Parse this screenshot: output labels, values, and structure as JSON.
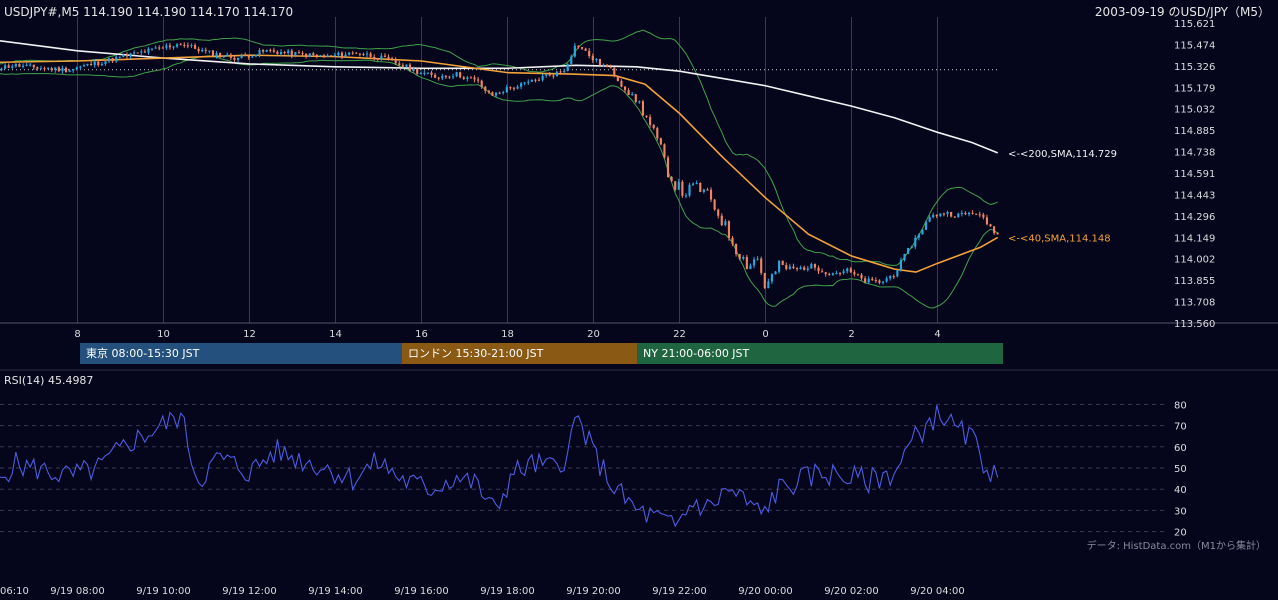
{
  "header": {
    "symbol_line": "USDJPY#,M5 114.190 114.190 114.170 114.170",
    "title_right": "2003-09-19 のUSD/JPY（M5）"
  },
  "colors": {
    "background": "#05051c",
    "candle_up": "#27a9e0",
    "candle_down": "#f4845f",
    "sma200": "#f2f2f2",
    "sma40": "#f3a23a",
    "bollinger": "#3fa24a",
    "rsi": "#4d5de0",
    "grid": "#3a3a55"
  },
  "sessions": [
    {
      "label": "東京 08:00-15:30 JST",
      "color": "#24507e"
    },
    {
      "label": "ロンドン 15:30-21:00 JST",
      "color": "#8a5a14"
    },
    {
      "label": "NY 21:00-06:00 JST",
      "color": "#1f6640"
    }
  ],
  "rsi_panel": {
    "title": "RSI(14) 45.4987",
    "source_note": "データ: HistData.com（M1から集計）"
  },
  "chart_data": [
    {
      "type": "candlestick",
      "title": "USDJPY#,M5",
      "x_ticks_hours": [
        "6",
        "8",
        "10",
        "12",
        "14",
        "16",
        "18",
        "20",
        "22",
        "0",
        "2",
        "4"
      ],
      "y_ticks": [
        "115.621",
        "115.474",
        "115.326",
        "115.179",
        "115.032",
        "114.885",
        "114.738",
        "114.591",
        "114.443",
        "114.296",
        "114.149",
        "114.002",
        "113.855",
        "113.708",
        "113.560"
      ],
      "ylim": [
        113.56,
        115.621
      ],
      "time_range_hours": [
        5.9,
        29.4
      ],
      "reference_line_price": 115.3,
      "close_path": [
        [
          5.9,
          115.3
        ],
        [
          6.5,
          115.33
        ],
        [
          7.2,
          115.31
        ],
        [
          7.8,
          115.3
        ],
        [
          8.5,
          115.35
        ],
        [
          9.2,
          115.4
        ],
        [
          9.8,
          115.44
        ],
        [
          10.4,
          115.48
        ],
        [
          11.0,
          115.42
        ],
        [
          11.7,
          115.38
        ],
        [
          12.4,
          115.43
        ],
        [
          13.0,
          115.41
        ],
        [
          13.8,
          115.39
        ],
        [
          14.5,
          115.42
        ],
        [
          15.2,
          115.37
        ],
        [
          15.8,
          115.3
        ],
        [
          16.3,
          115.25
        ],
        [
          16.8,
          115.27
        ],
        [
          17.3,
          115.22
        ],
        [
          17.6,
          115.12
        ],
        [
          18.0,
          115.17
        ],
        [
          18.4,
          115.2
        ],
        [
          18.9,
          115.26
        ],
        [
          19.3,
          115.29
        ],
        [
          19.6,
          115.48
        ],
        [
          20.0,
          115.37
        ],
        [
          20.4,
          115.3
        ],
        [
          20.7,
          115.18
        ],
        [
          21.1,
          115.05
        ],
        [
          21.5,
          114.8
        ],
        [
          21.8,
          114.55
        ],
        [
          22.1,
          114.45
        ],
        [
          22.4,
          114.5
        ],
        [
          22.7,
          114.42
        ],
        [
          23.0,
          114.26
        ],
        [
          23.3,
          114.08
        ],
        [
          23.6,
          113.95
        ],
        [
          23.8,
          114.02
        ],
        [
          24.0,
          113.8
        ],
        [
          24.3,
          113.95
        ],
        [
          24.7,
          113.93
        ],
        [
          25.1,
          113.95
        ],
        [
          25.5,
          113.9
        ],
        [
          25.9,
          113.92
        ],
        [
          26.3,
          113.85
        ],
        [
          26.7,
          113.84
        ],
        [
          27.0,
          113.9
        ],
        [
          27.4,
          114.1
        ],
        [
          27.8,
          114.28
        ],
        [
          28.1,
          114.32
        ],
        [
          28.5,
          114.3
        ],
        [
          28.9,
          114.32
        ],
        [
          29.1,
          114.26
        ],
        [
          29.4,
          114.17
        ]
      ],
      "series": [
        {
          "name": "200,SMA",
          "label": "<-<200,SMA,114.729",
          "last_value": 114.729,
          "points": [
            [
              5.9,
              115.51
            ],
            [
              8.0,
              115.43
            ],
            [
              10.0,
              115.38
            ],
            [
              12.0,
              115.34
            ],
            [
              14.0,
              115.32
            ],
            [
              16.0,
              115.31
            ],
            [
              18.0,
              115.31
            ],
            [
              19.6,
              115.33
            ],
            [
              21.0,
              115.32
            ],
            [
              22.0,
              115.29
            ],
            [
              23.0,
              115.24
            ],
            [
              24.0,
              115.19
            ],
            [
              25.0,
              115.12
            ],
            [
              26.0,
              115.05
            ],
            [
              27.0,
              114.97
            ],
            [
              28.0,
              114.87
            ],
            [
              28.8,
              114.8
            ],
            [
              29.4,
              114.729
            ]
          ]
        },
        {
          "name": "40,SMA",
          "label": "<-<40,SMA,114.148",
          "last_value": 114.148,
          "points": [
            [
              5.9,
              115.35
            ],
            [
              8.0,
              115.36
            ],
            [
              10.0,
              115.38
            ],
            [
              12.0,
              115.4
            ],
            [
              14.0,
              115.39
            ],
            [
              16.0,
              115.36
            ],
            [
              18.0,
              115.28
            ],
            [
              19.5,
              115.27
            ],
            [
              20.5,
              115.26
            ],
            [
              21.2,
              115.2
            ],
            [
              22.0,
              115.0
            ],
            [
              23.0,
              114.7
            ],
            [
              24.0,
              114.42
            ],
            [
              25.0,
              114.17
            ],
            [
              26.0,
              114.02
            ],
            [
              27.0,
              113.93
            ],
            [
              27.5,
              113.91
            ],
            [
              28.0,
              113.97
            ],
            [
              29.0,
              114.08
            ],
            [
              29.4,
              114.148
            ]
          ]
        }
      ]
    },
    {
      "type": "line",
      "title": "RSI(14) 45.4987",
      "y_ticks": [
        "80",
        "70",
        "60",
        "50",
        "40",
        "30",
        "20"
      ],
      "ylim": [
        17,
        83
      ],
      "x_tick_labels": [
        "06:10",
        "9/19 08:00",
        "9/19 10:00",
        "9/19 12:00",
        "9/19 14:00",
        "9/19 16:00",
        "9/19 18:00",
        "9/19 20:00",
        "9/19 22:00",
        "9/20 00:00",
        "9/20 02:00",
        "9/20 04:00"
      ],
      "rsi_last": 45.4987,
      "rsi_anchors": [
        [
          5.9,
          36
        ],
        [
          6.5,
          52
        ],
        [
          7.2,
          49
        ],
        [
          7.8,
          46
        ],
        [
          8.5,
          50
        ],
        [
          9.2,
          62
        ],
        [
          9.8,
          68
        ],
        [
          10.4,
          75
        ],
        [
          10.8,
          44
        ],
        [
          11.3,
          55
        ],
        [
          12.0,
          48
        ],
        [
          12.6,
          58
        ],
        [
          13.2,
          54
        ],
        [
          13.8,
          50
        ],
        [
          14.4,
          45
        ],
        [
          15.0,
          53
        ],
        [
          15.6,
          44
        ],
        [
          16.2,
          40
        ],
        [
          16.8,
          46
        ],
        [
          17.3,
          42
        ],
        [
          17.7,
          29
        ],
        [
          18.1,
          47
        ],
        [
          18.6,
          52
        ],
        [
          19.0,
          50
        ],
        [
          19.4,
          56
        ],
        [
          19.6,
          75
        ],
        [
          20.0,
          57
        ],
        [
          20.5,
          40
        ],
        [
          21.0,
          30
        ],
        [
          21.5,
          26
        ],
        [
          21.9,
          22
        ],
        [
          22.3,
          34
        ],
        [
          22.7,
          31
        ],
        [
          23.1,
          40
        ],
        [
          23.5,
          35
        ],
        [
          23.9,
          28
        ],
        [
          24.3,
          40
        ],
        [
          24.8,
          44
        ],
        [
          25.3,
          48
        ],
        [
          25.8,
          46
        ],
        [
          26.4,
          44
        ],
        [
          27.0,
          48
        ],
        [
          27.4,
          62
        ],
        [
          27.8,
          72
        ],
        [
          28.1,
          76
        ],
        [
          28.4,
          68
        ],
        [
          28.8,
          64
        ],
        [
          29.1,
          52
        ],
        [
          29.4,
          45.4987
        ]
      ]
    }
  ]
}
